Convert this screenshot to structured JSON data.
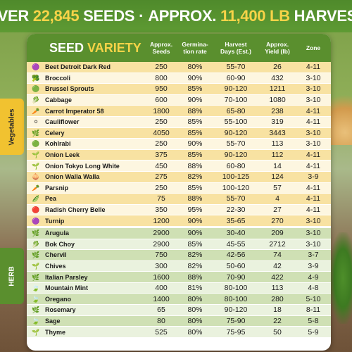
{
  "banner": {
    "part1": "OVER",
    "seeds_count": "22,845",
    "part2": "SEEDS",
    "dot": "·",
    "part3": "APPROX.",
    "harvest_weight": "11,400 LB",
    "part4": "HARVEST"
  },
  "header": {
    "title_part1": "SEED",
    "title_part2": "VARIETY",
    "col_seeds": "Approx.\nSeeds",
    "col_germ": "Germina-\ntion rate",
    "col_days": "Harvest\nDays (Est.)",
    "col_yield": "Approx.\nYield (lb)",
    "col_zone": "Zone"
  },
  "side_labels": {
    "vegetables": "Vegetables",
    "herb": "HERB"
  },
  "vegetables": [
    {
      "name": "Beet Detroit Dark Red",
      "seeds": "250",
      "germ": "80%",
      "days": "55-70",
      "yield": "26",
      "zone": "4-11",
      "icon": "🟣"
    },
    {
      "name": "Broccoli",
      "seeds": "800",
      "germ": "90%",
      "days": "60-90",
      "yield": "432",
      "zone": "3-10",
      "icon": "🥦"
    },
    {
      "name": "Brussel Sprouts",
      "seeds": "950",
      "germ": "85%",
      "days": "90-120",
      "yield": "1211",
      "zone": "3-10",
      "icon": "🟢"
    },
    {
      "name": "Cabbage",
      "seeds": "600",
      "germ": "90%",
      "days": "70-100",
      "yield": "1080",
      "zone": "3-10",
      "icon": "🥬"
    },
    {
      "name": "Carrot Imperator 58",
      "seeds": "1800",
      "germ": "88%",
      "days": "65-80",
      "yield": "238",
      "zone": "4-11",
      "icon": "🥕"
    },
    {
      "name": "Cauliflower",
      "seeds": "250",
      "germ": "85%",
      "days": "55-100",
      "yield": "319",
      "zone": "4-11",
      "icon": "⚪"
    },
    {
      "name": "Celery",
      "seeds": "4050",
      "germ": "85%",
      "days": "90-120",
      "yield": "3443",
      "zone": "3-10",
      "icon": "🌿"
    },
    {
      "name": "Kohlrabi",
      "seeds": "250",
      "germ": "90%",
      "days": "55-70",
      "yield": "113",
      "zone": "3-10",
      "icon": "🟢"
    },
    {
      "name": "Onion Leek",
      "seeds": "375",
      "germ": "85%",
      "days": "90-120",
      "yield": "112",
      "zone": "4-11",
      "icon": "🌱"
    },
    {
      "name": "Onion Tokyo Long White",
      "seeds": "450",
      "germ": "88%",
      "days": "60-80",
      "yield": "14",
      "zone": "4-11",
      "icon": "🌱"
    },
    {
      "name": "Onion Walla Walla",
      "seeds": "275",
      "germ": "82%",
      "days": "100-125",
      "yield": "124",
      "zone": "3-9",
      "icon": "🧅"
    },
    {
      "name": "Parsnip",
      "seeds": "250",
      "germ": "85%",
      "days": "100-120",
      "yield": "57",
      "zone": "4-11",
      "icon": "🥕"
    },
    {
      "name": "Pea",
      "seeds": "75",
      "germ": "88%",
      "days": "55-70",
      "yield": "4",
      "zone": "4-11",
      "icon": "🫛"
    },
    {
      "name": "Radish Cherry Belle",
      "seeds": "350",
      "germ": "95%",
      "days": "22-30",
      "yield": "27",
      "zone": "4-11",
      "icon": "🔴"
    },
    {
      "name": "Turnip",
      "seeds": "1200",
      "germ": "90%",
      "days": "35-65",
      "yield": "270",
      "zone": "3-10",
      "icon": "🟣"
    }
  ],
  "herbs": [
    {
      "name": "Arugula",
      "seeds": "2900",
      "germ": "90%",
      "days": "30-40",
      "yield": "209",
      "zone": "3-10",
      "icon": "🌿"
    },
    {
      "name": "Bok Choy",
      "seeds": "2900",
      "germ": "85%",
      "days": "45-55",
      "yield": "2712",
      "zone": "3-10",
      "icon": "🥬"
    },
    {
      "name": "Chervil",
      "seeds": "750",
      "germ": "82%",
      "days": "42-56",
      "yield": "74",
      "zone": "3-7",
      "icon": "🌿"
    },
    {
      "name": "Chives",
      "seeds": "300",
      "germ": "82%",
      "days": "50-60",
      "yield": "42",
      "zone": "3-9",
      "icon": "🌱"
    },
    {
      "name": "Italian Parsley",
      "seeds": "1600",
      "germ": "88%",
      "days": "70-90",
      "yield": "422",
      "zone": "4-9",
      "icon": "🌿"
    },
    {
      "name": "Mountain Mint",
      "seeds": "400",
      "germ": "81%",
      "days": "80-100",
      "yield": "113",
      "zone": "4-8",
      "icon": "🍃"
    },
    {
      "name": "Oregano",
      "seeds": "1400",
      "germ": "80%",
      "days": "80-100",
      "yield": "280",
      "zone": "5-10",
      "icon": "🍃"
    },
    {
      "name": "Rosemary",
      "seeds": "65",
      "germ": "80%",
      "days": "90-120",
      "yield": "18",
      "zone": "8-11",
      "icon": "🌿"
    },
    {
      "name": "Sage",
      "seeds": "80",
      "germ": "80%",
      "days": "75-90",
      "yield": "22",
      "zone": "5-8",
      "icon": "🍃"
    },
    {
      "name": "Thyme",
      "seeds": "525",
      "germ": "80%",
      "days": "75-95",
      "yield": "50",
      "zone": "5-9",
      "icon": "🌱"
    }
  ]
}
